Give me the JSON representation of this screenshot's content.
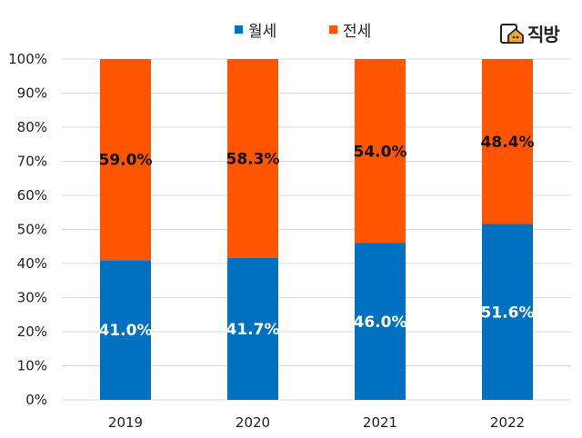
{
  "legend": {
    "monthly_label": "월세",
    "jeonse_label": "전세"
  },
  "logo": {
    "text": "직방"
  },
  "colors": {
    "monthly": "#0070C0",
    "jeonse": "#FF5500",
    "grid": "#d9d9d9",
    "logo_accent": "#F5A623"
  },
  "chart_data": {
    "type": "bar",
    "stacked": true,
    "categories": [
      "2019",
      "2020",
      "2021",
      "2022"
    ],
    "series": [
      {
        "name": "월세",
        "values": [
          41.0,
          41.7,
          46.0,
          51.6
        ],
        "labels": [
          "41.0%",
          "41.7%",
          "46.0%",
          "51.6%"
        ]
      },
      {
        "name": "전세",
        "values": [
          59.0,
          58.3,
          54.0,
          48.4
        ],
        "labels": [
          "59.0%",
          "58.3%",
          "54.0%",
          "48.4%"
        ]
      }
    ],
    "y_ticks": [
      "0%",
      "10%",
      "20%",
      "30%",
      "40%",
      "50%",
      "60%",
      "70%",
      "80%",
      "90%",
      "100%"
    ],
    "ylim": [
      0,
      100
    ],
    "grid": true,
    "legend_position": "top"
  }
}
